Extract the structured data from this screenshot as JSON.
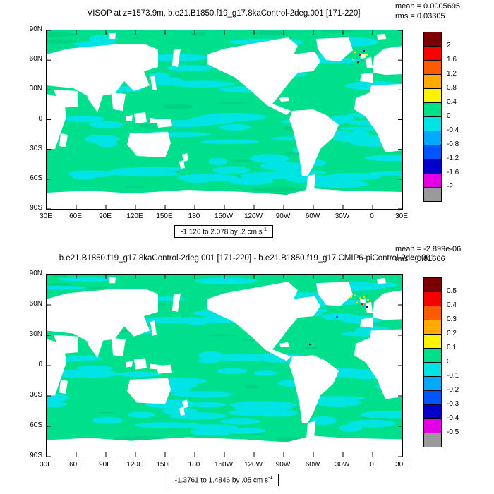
{
  "colors": {
    "ocean_green": "#00df8b",
    "anomaly_cyan": "#00e4e4",
    "texture_green": "#00cc7e",
    "land_white": "#ffffff",
    "axis_black": "#000000"
  },
  "panels": [
    {
      "title": "VISOP at z=1573.9m, b.e21.B1850.f19_g17.8kaControl-2deg.001 [171-220]",
      "mean_label": "mean = 0.0005695",
      "rms_label": "rms = 0.03305",
      "footer_text": "-1.126 to 2.078 by .2 cm s",
      "footer_sup": "-1",
      "lat_labels": [
        "90N",
        "60N",
        "30N",
        "0",
        "30S",
        "60S",
        "90S"
      ],
      "lon_labels": [
        "30E",
        "60E",
        "90E",
        "120E",
        "150E",
        "180",
        "150W",
        "120W",
        "90W",
        "60W",
        "30W",
        "0",
        "30E"
      ],
      "colorbar": {
        "labels": [
          "2",
          "1.6",
          "1.2",
          "0.8",
          "0.4",
          "0",
          "-0.4",
          "-0.8",
          "-1.2",
          "-1.6",
          "-2"
        ],
        "colors": [
          "#7d0000",
          "#f80000",
          "#ff5a00",
          "#ffaa00",
          "#fff200",
          "#00df8b",
          "#00e4e4",
          "#00aaff",
          "#0055ff",
          "#0000c8",
          "#e400e4",
          "#9a9a9a"
        ]
      }
    },
    {
      "title": "b.e21.B1850.f19_g17.8kaControl-2deg.001 [171-220] - b.e21.B1850.f19_g17.CMIP6-piControl-2deg.001",
      "mean_label": "mean = -2.899e-06",
      "rms_label": "rms = 0.01666",
      "footer_text": "-1.3761 to 1.4846 by .05 cm s",
      "footer_sup": "-1",
      "lat_labels": [
        "90N",
        "60N",
        "30N",
        "0",
        "30S",
        "60S",
        "90S"
      ],
      "lon_labels": [
        "30E",
        "60E",
        "90E",
        "120E",
        "150E",
        "180",
        "150W",
        "120W",
        "90W",
        "60W",
        "30W",
        "0",
        "30E"
      ],
      "colorbar": {
        "labels": [
          "0.5",
          "0.4",
          "0.3",
          "0.2",
          "0.1",
          "0",
          "-0.1",
          "-0.2",
          "-0.3",
          "-0.4",
          "-0.5"
        ],
        "colors": [
          "#7d0000",
          "#f80000",
          "#ff5a00",
          "#ffaa00",
          "#fff200",
          "#00df8b",
          "#00e4e4",
          "#00aaff",
          "#0055ff",
          "#0000c8",
          "#e400e4",
          "#9a9a9a"
        ]
      }
    }
  ],
  "chart_data": [
    {
      "type": "heatmap",
      "subtype": "global lat-lon contour map, land masked white",
      "title": "VISOP at z=1573.9m, b.e21.B1850.f19_g17.8kaControl-2deg.001 [171-220]",
      "mean": 0.0005695,
      "rms": 0.03305,
      "data_min": -1.126,
      "data_max": 2.078,
      "contour_interval": 0.2,
      "units": "cm s-1",
      "range_label": "-1.126 to 2.078 by .2 cm s-1",
      "colorbar_ticks": [
        2,
        1.6,
        1.2,
        0.8,
        0.4,
        0,
        -0.4,
        -0.8,
        -1.2,
        -1.6,
        -2
      ],
      "colorbar_colors": [
        "#7d0000",
        "#f80000",
        "#ff5a00",
        "#ffaa00",
        "#fff200",
        "#00df8b",
        "#00e4e4",
        "#00aaff",
        "#0055ff",
        "#0000c8",
        "#e400e4",
        "#9a9a9a"
      ],
      "x_tick_labels": [
        "30E",
        "60E",
        "90E",
        "120E",
        "150E",
        "180",
        "150W",
        "120W",
        "90W",
        "60W",
        "30W",
        "0",
        "30E"
      ],
      "y_tick_labels": [
        "90N",
        "60N",
        "30N",
        "0",
        "30S",
        "60S",
        "90S"
      ],
      "legend_position": "right",
      "dominant_field": "values near 0 (green, 0 to 0.4 band) with cyan slightly-negative bands along subpolar, equatorial and Southern Ocean latitudes; scattered red/yellow/blue extremes near 60N Atlantic"
    },
    {
      "type": "heatmap",
      "subtype": "global lat-lon contour difference map, land masked white",
      "title": "b.e21.B1850.f19_g17.8kaControl-2deg.001 [171-220] - b.e21.B1850.f19_g17.CMIP6-piControl-2deg.001",
      "mean": -2.899e-06,
      "rms": 0.01666,
      "data_min": -1.3761,
      "data_max": 1.4846,
      "contour_interval": 0.05,
      "units": "cm s-1",
      "range_label": "-1.3761 to 1.4846 by .05 cm s-1",
      "colorbar_ticks": [
        0.5,
        0.4,
        0.3,
        0.2,
        0.1,
        0,
        -0.1,
        -0.2,
        -0.3,
        -0.4,
        -0.5
      ],
      "colorbar_colors": [
        "#7d0000",
        "#f80000",
        "#ff5a00",
        "#ffaa00",
        "#fff200",
        "#00df8b",
        "#00e4e4",
        "#00aaff",
        "#0055ff",
        "#0000c8",
        "#e400e4",
        "#9a9a9a"
      ],
      "x_tick_labels": [
        "30E",
        "60E",
        "90E",
        "120E",
        "150E",
        "180",
        "150W",
        "120W",
        "90W",
        "60W",
        "30W",
        "0",
        "30E"
      ],
      "y_tick_labels": [
        "90N",
        "60N",
        "30N",
        "0",
        "30S",
        "60S",
        "90S"
      ],
      "legend_position": "right",
      "dominant_field": "difference field near 0 (green) with cyan patches and a cluster of yellow/red/blue extremes near 60N Atlantic"
    }
  ]
}
